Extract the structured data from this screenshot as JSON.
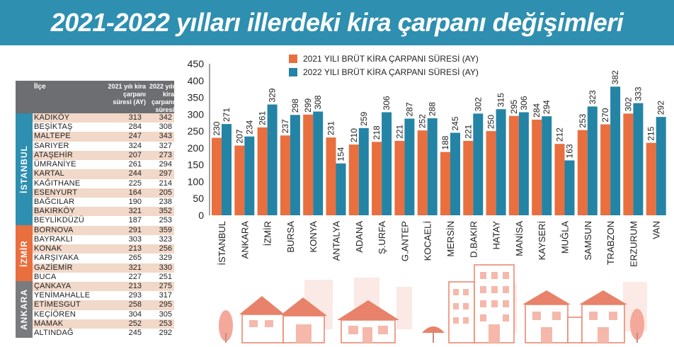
{
  "title": "2021-2022 yılları illerdeki kira çarpanı değişimleri",
  "colors": {
    "banner": "#2e8fb0",
    "series_2021": "#e96f3f",
    "series_2022": "#2384a6"
  },
  "table": {
    "headers": [
      "İlçe",
      "2021 yılı kira çarpanı süresi (AY)",
      "2022 yılı kira çarpanı süresi (AY)"
    ],
    "city_labels": [
      "İSTANBUL",
      "İZMİR",
      "ANKARA"
    ],
    "rows": [
      {
        "name": "KADIKÖY",
        "v2021": "313",
        "v2022": "342"
      },
      {
        "name": "BEŞİKTAŞ",
        "v2021": "284",
        "v2022": "308"
      },
      {
        "name": "MALTEPE",
        "v2021": "247",
        "v2022": "343"
      },
      {
        "name": "SARIYER",
        "v2021": "324",
        "v2022": "327"
      },
      {
        "name": "ATAŞEHİR",
        "v2021": "207",
        "v2022": "273"
      },
      {
        "name": "ÜMRANİYE",
        "v2021": "261",
        "v2022": "294"
      },
      {
        "name": "KARTAL",
        "v2021": "244",
        "v2022": "297"
      },
      {
        "name": "KAĞITHANE",
        "v2021": "225",
        "v2022": "214"
      },
      {
        "name": "ESENYURT",
        "v2021": "164",
        "v2022": "205"
      },
      {
        "name": "BAĞCILAR",
        "v2021": "190",
        "v2022": "238"
      },
      {
        "name": "BAKIRKÖY",
        "v2021": "321",
        "v2022": "352"
      },
      {
        "name": "BEYLİKDÜZÜ",
        "v2021": "187",
        "v2022": "253"
      },
      {
        "name": "BORNOVA",
        "v2021": "291",
        "v2022": "359"
      },
      {
        "name": "BAYRAKLI",
        "v2021": "303",
        "v2022": "323"
      },
      {
        "name": "KONAK",
        "v2021": "213",
        "v2022": "256"
      },
      {
        "name": "KARŞIYAKA",
        "v2021": "265",
        "v2022": "329"
      },
      {
        "name": "GAZİEMİR",
        "v2021": "321",
        "v2022": "330"
      },
      {
        "name": "BUCA",
        "v2021": "227",
        "v2022": "251"
      },
      {
        "name": "ÇANKAYA",
        "v2021": "213",
        "v2022": "275"
      },
      {
        "name": "YENİMAHALLE",
        "v2021": "293",
        "v2022": "317"
      },
      {
        "name": "ETİMESGUT",
        "v2021": "258",
        "v2022": "295"
      },
      {
        "name": "KEÇİÖREN",
        "v2021": "304",
        "v2022": "305"
      },
      {
        "name": "MAMAK",
        "v2021": "252",
        "v2022": "253"
      },
      {
        "name": "ALTINDAĞ",
        "v2021": "245",
        "v2022": "292"
      }
    ]
  },
  "chart_data": {
    "type": "bar",
    "title": "",
    "xlabel": "",
    "ylabel": "",
    "ylim": [
      0,
      450
    ],
    "yticks": [
      0,
      50,
      100,
      150,
      200,
      250,
      300,
      350,
      400,
      450
    ],
    "grid": false,
    "legend": "top",
    "categories": [
      "İSTANBUL",
      "ANKARA",
      "İZMİR",
      "BURSA",
      "KONYA",
      "ANTALYA",
      "ADANA",
      "Ş.URFA",
      "G.ANTEP",
      "KOCAELİ",
      "MERSİN",
      "D.BAKIR",
      "HATAY",
      "MANİSA",
      "KAYSERİ",
      "MUĞLA",
      "SAMSUN",
      "TRABZON",
      "ERZURUM",
      "VAN"
    ],
    "series": [
      {
        "name": "2021 YILI BRÜT KİRA  ÇARPANI SÜRESİ (AY)",
        "values": [
          230,
          207,
          261,
          237,
          299,
          231,
          210,
          218,
          221,
          252,
          188,
          221,
          250,
          295,
          284,
          212,
          253,
          270,
          302,
          215
        ]
      },
      {
        "name": "2022 YILI BRÜT KİRA ÇARPANI SÜRESİ (AY)",
        "values": [
          271,
          234,
          329,
          298,
          308,
          154,
          259,
          306,
          287,
          288,
          245,
          302,
          315,
          306,
          294,
          163,
          323,
          382,
          333,
          292
        ]
      }
    ]
  }
}
